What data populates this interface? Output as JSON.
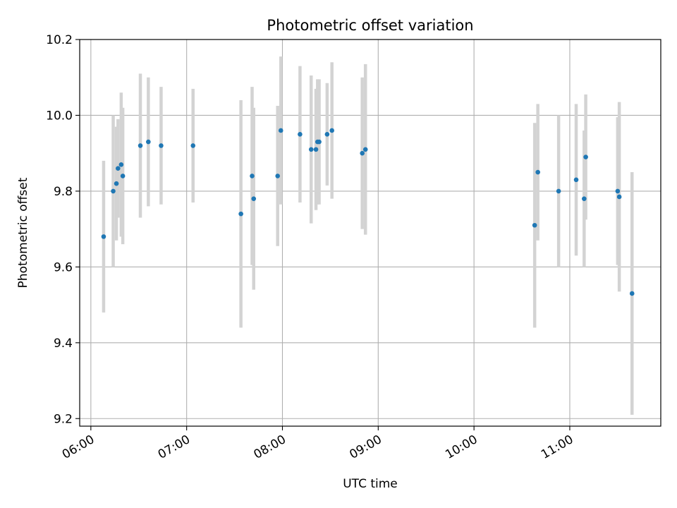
{
  "chart_data": {
    "type": "scatter",
    "title": "Photometric offset variation",
    "xlabel": "UTC time",
    "ylabel": "Photometric offset",
    "xlim": [
      "05:53",
      "11:57"
    ],
    "ylim": [
      9.18,
      10.2
    ],
    "x_ticks": [
      "06:00",
      "07:00",
      "08:00",
      "09:00",
      "10:00",
      "11:00"
    ],
    "y_ticks": [
      9.2,
      9.4,
      9.6,
      9.8,
      10.0,
      10.2
    ],
    "y_tick_labels": [
      "9.2",
      "9.4",
      "9.6",
      "9.8",
      "10.0",
      "10.2"
    ],
    "grid": true,
    "colors": {
      "point": "#1f77b4",
      "errorbar": "#d3d3d3",
      "grid": "#b0b0b0"
    },
    "points": [
      {
        "x": "06:08",
        "y": 9.68,
        "err": 0.2
      },
      {
        "x": "06:14",
        "y": 9.8,
        "err": 0.2
      },
      {
        "x": "06:16",
        "y": 9.82,
        "err": 0.15
      },
      {
        "x": "06:17",
        "y": 9.86,
        "err": 0.13
      },
      {
        "x": "06:19",
        "y": 9.87,
        "err": 0.19
      },
      {
        "x": "06:20",
        "y": 9.84,
        "err": 0.18
      },
      {
        "x": "06:31",
        "y": 9.92,
        "err": 0.19
      },
      {
        "x": "06:36",
        "y": 9.93,
        "err": 0.17
      },
      {
        "x": "06:44",
        "y": 9.92,
        "err": 0.155
      },
      {
        "x": "07:04",
        "y": 9.92,
        "err": 0.15
      },
      {
        "x": "07:34",
        "y": 9.74,
        "err": 0.3
      },
      {
        "x": "07:41",
        "y": 9.84,
        "err": 0.235
      },
      {
        "x": "07:42",
        "y": 9.78,
        "err": 0.24
      },
      {
        "x": "07:57",
        "y": 9.84,
        "err": 0.185
      },
      {
        "x": "07:59",
        "y": 9.96,
        "err": 0.195
      },
      {
        "x": "08:11",
        "y": 9.95,
        "err": 0.18
      },
      {
        "x": "08:18",
        "y": 9.91,
        "err": 0.195
      },
      {
        "x": "08:21",
        "y": 9.91,
        "err": 0.16
      },
      {
        "x": "08:22",
        "y": 9.93,
        "err": 0.165
      },
      {
        "x": "08:23",
        "y": 9.93,
        "err": 0.165
      },
      {
        "x": "08:28",
        "y": 9.95,
        "err": 0.135
      },
      {
        "x": "08:31",
        "y": 9.96,
        "err": 0.18
      },
      {
        "x": "08:50",
        "y": 9.9,
        "err": 0.2
      },
      {
        "x": "08:52",
        "y": 9.91,
        "err": 0.225
      },
      {
        "x": "10:38",
        "y": 9.71,
        "err": 0.27
      },
      {
        "x": "10:40",
        "y": 9.85,
        "err": 0.18
      },
      {
        "x": "10:53",
        "y": 9.8,
        "err": 0.2
      },
      {
        "x": "11:04",
        "y": 9.83,
        "err": 0.2
      },
      {
        "x": "11:09",
        "y": 9.78,
        "err": 0.18
      },
      {
        "x": "11:10",
        "y": 9.89,
        "err": 0.165
      },
      {
        "x": "11:30",
        "y": 9.8,
        "err": 0.195
      },
      {
        "x": "11:31",
        "y": 9.785,
        "err": 0.25
      },
      {
        "x": "11:39",
        "y": 9.53,
        "err": 0.32
      }
    ]
  }
}
